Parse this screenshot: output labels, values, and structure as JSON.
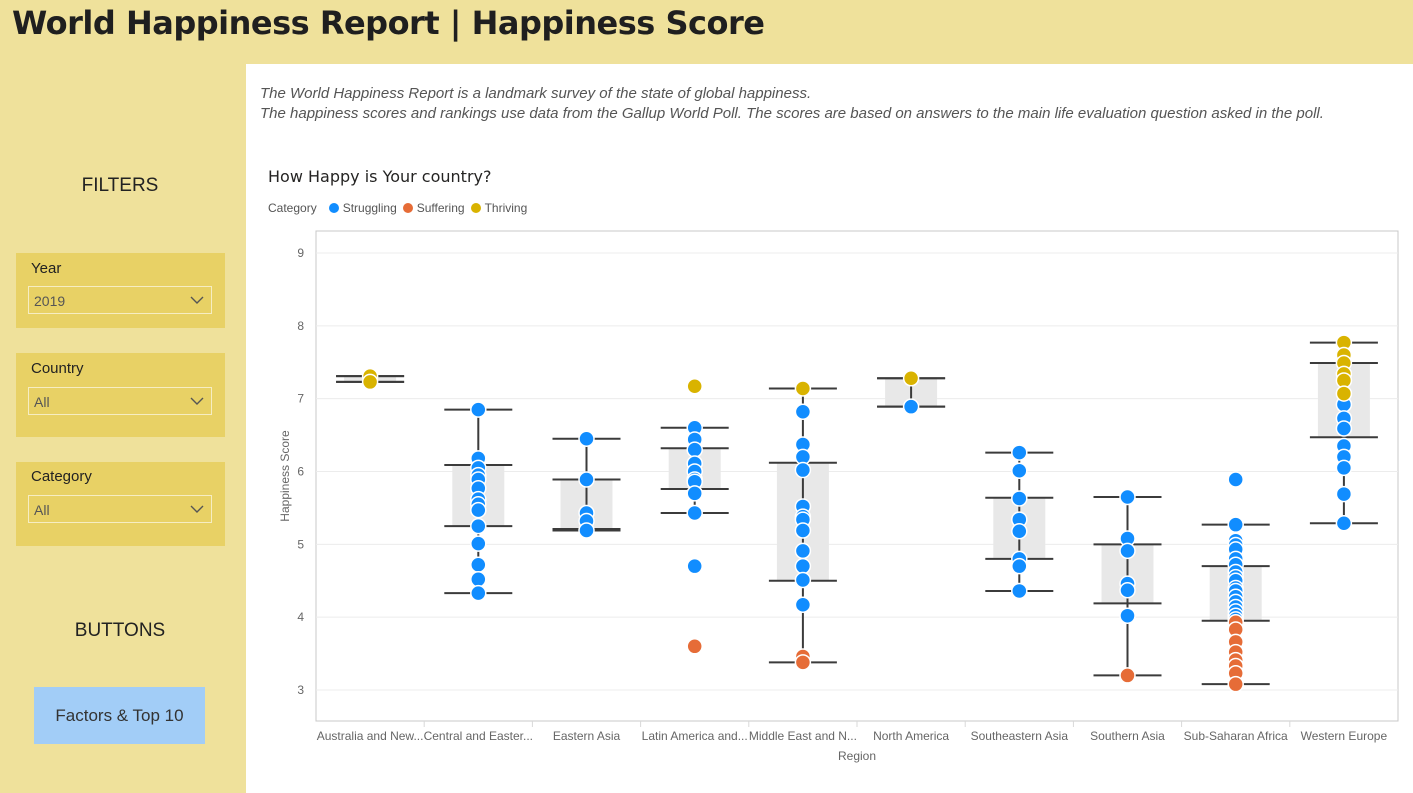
{
  "header": {
    "title": "World Happiness Report | Happiness Score"
  },
  "sidebar": {
    "filters_heading": "FILTERS",
    "buttons_heading": "BUTTONS",
    "filters": [
      {
        "label": "Year",
        "value": "2019"
      },
      {
        "label": "Country",
        "value": "All"
      },
      {
        "label": "Category",
        "value": "All"
      }
    ],
    "factors_button": "Factors & Top 10"
  },
  "description": {
    "line1": "The World Happiness Report is a landmark survey of the state of global happiness.",
    "line2": "The happiness scores and rankings use data from the Gallup World Poll. The scores are based on answers to the main life evaluation question asked in the poll."
  },
  "chart_title": "How Happy is Your country?",
  "legend": {
    "title": "Category",
    "items": [
      {
        "name": "Struggling",
        "color": "#118dff"
      },
      {
        "name": "Suffering",
        "color": "#e66c37"
      },
      {
        "name": "Thriving",
        "color": "#d9b300"
      }
    ]
  },
  "chart_data": {
    "type": "scatter",
    "subtype": "box-and-whisker",
    "title": "How Happy is Your country?",
    "xlabel": "Region",
    "ylabel": "Happiness Score",
    "ylim": [
      2.6,
      9.3
    ],
    "yticks": [
      3,
      4,
      5,
      6,
      7,
      8,
      9
    ],
    "grid": true,
    "categories": [
      "Australia and New...",
      "Central and Easter...",
      "Eastern Asia",
      "Latin America and...",
      "Middle East and N...",
      "North America",
      "Southeastern Asia",
      "Southern Asia",
      "Sub-Saharan Africa",
      "Western Europe"
    ],
    "boxes": [
      {
        "min": 7.23,
        "q1": 7.23,
        "q3": 7.31,
        "max": 7.31
      },
      {
        "min": 4.33,
        "q1": 5.25,
        "q3": 6.09,
        "max": 6.85
      },
      {
        "min": 5.19,
        "q1": 5.21,
        "q3": 5.89,
        "max": 6.45
      },
      {
        "min": 5.43,
        "q1": 5.76,
        "q3": 6.32,
        "max": 6.6
      },
      {
        "min": 3.38,
        "q1": 4.5,
        "q3": 6.12,
        "max": 7.14
      },
      {
        "min": 6.89,
        "q1": 6.89,
        "q3": 7.28,
        "max": 7.28
      },
      {
        "min": 4.36,
        "q1": 4.8,
        "q3": 5.64,
        "max": 6.26
      },
      {
        "min": 3.2,
        "q1": 4.19,
        "q3": 5.0,
        "max": 5.65
      },
      {
        "min": 3.08,
        "q1": 3.95,
        "q3": 4.7,
        "max": 5.27
      },
      {
        "min": 5.29,
        "q1": 6.47,
        "q3": 7.49,
        "max": 7.77
      }
    ],
    "series": [
      {
        "name": "Struggling",
        "color": "#118dff",
        "points": [
          [
            1,
            6.85
          ],
          [
            1,
            6.18
          ],
          [
            1,
            6.05
          ],
          [
            1,
            5.95
          ],
          [
            1,
            5.89
          ],
          [
            1,
            5.77
          ],
          [
            1,
            5.62
          ],
          [
            1,
            5.55
          ],
          [
            1,
            5.47
          ],
          [
            1,
            5.25
          ],
          [
            1,
            5.01
          ],
          [
            1,
            4.72
          ],
          [
            1,
            4.52
          ],
          [
            1,
            4.33
          ],
          [
            2,
            6.45
          ],
          [
            2,
            5.89
          ],
          [
            2,
            5.43
          ],
          [
            2,
            5.32
          ],
          [
            2,
            5.19
          ],
          [
            3,
            6.6
          ],
          [
            3,
            6.44
          ],
          [
            3,
            6.3
          ],
          [
            3,
            6.11
          ],
          [
            3,
            6.0
          ],
          [
            3,
            5.89
          ],
          [
            3,
            5.86
          ],
          [
            3,
            5.7
          ],
          [
            3,
            5.43
          ],
          [
            3,
            4.7
          ],
          [
            4,
            6.82
          ],
          [
            4,
            6.37
          ],
          [
            4,
            6.2
          ],
          [
            4,
            6.02
          ],
          [
            4,
            5.52
          ],
          [
            4,
            5.38
          ],
          [
            4,
            5.34
          ],
          [
            4,
            5.19
          ],
          [
            4,
            4.91
          ],
          [
            4,
            4.7
          ],
          [
            4,
            4.51
          ],
          [
            4,
            4.17
          ],
          [
            5,
            6.89
          ],
          [
            6,
            6.26
          ],
          [
            6,
            6.01
          ],
          [
            6,
            5.63
          ],
          [
            6,
            5.34
          ],
          [
            6,
            5.18
          ],
          [
            6,
            4.8
          ],
          [
            6,
            4.7
          ],
          [
            6,
            4.36
          ],
          [
            7,
            5.65
          ],
          [
            7,
            5.08
          ],
          [
            7,
            4.91
          ],
          [
            7,
            4.46
          ],
          [
            7,
            4.37
          ],
          [
            7,
            4.02
          ],
          [
            8,
            5.89
          ],
          [
            8,
            5.27
          ],
          [
            8,
            5.05
          ],
          [
            8,
            4.99
          ],
          [
            8,
            4.93
          ],
          [
            8,
            4.8
          ],
          [
            8,
            4.72
          ],
          [
            8,
            4.62
          ],
          [
            8,
            4.55
          ],
          [
            8,
            4.5
          ],
          [
            8,
            4.4
          ],
          [
            8,
            4.36
          ],
          [
            8,
            4.28
          ],
          [
            8,
            4.21
          ],
          [
            8,
            4.14
          ],
          [
            8,
            4.08
          ],
          [
            8,
            4.02
          ],
          [
            8,
            3.97
          ],
          [
            9,
            6.92
          ],
          [
            9,
            6.73
          ],
          [
            9,
            6.59
          ],
          [
            9,
            6.35
          ],
          [
            9,
            6.2
          ],
          [
            9,
            6.05
          ],
          [
            9,
            5.69
          ],
          [
            9,
            5.29
          ]
        ]
      },
      {
        "name": "Suffering",
        "color": "#e66c37",
        "points": [
          [
            3,
            3.6
          ],
          [
            4,
            3.46
          ],
          [
            4,
            3.38
          ],
          [
            7,
            3.2
          ],
          [
            8,
            3.93
          ],
          [
            8,
            3.83
          ],
          [
            8,
            3.66
          ],
          [
            8,
            3.52
          ],
          [
            8,
            3.41
          ],
          [
            8,
            3.33
          ],
          [
            8,
            3.23
          ],
          [
            8,
            3.08
          ]
        ]
      },
      {
        "name": "Thriving",
        "color": "#d9b300",
        "points": [
          [
            0,
            7.31
          ],
          [
            0,
            7.23
          ],
          [
            3,
            7.17
          ],
          [
            4,
            7.14
          ],
          [
            5,
            7.28
          ],
          [
            9,
            7.77
          ],
          [
            9,
            7.6
          ],
          [
            9,
            7.49
          ],
          [
            9,
            7.34
          ],
          [
            9,
            7.25
          ],
          [
            9,
            7.07
          ]
        ]
      }
    ]
  }
}
